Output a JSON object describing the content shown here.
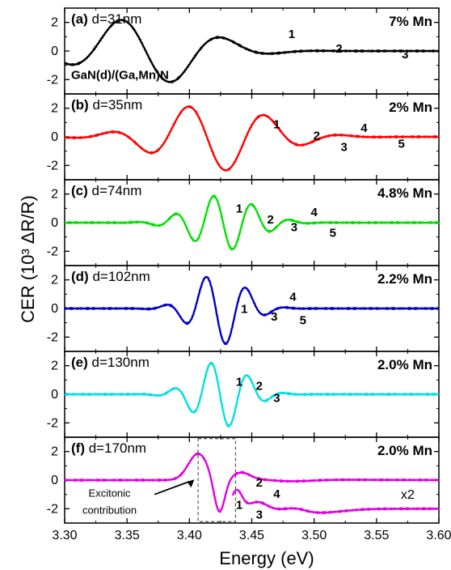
{
  "chart_data": {
    "type": "line",
    "xlabel": "Energy (eV)",
    "ylabel": "CER (10³ ΔR/R)",
    "xlim": [
      3.3,
      3.6
    ],
    "ylim": [
      -3,
      3
    ],
    "xticks": [
      "3.30",
      "3.35",
      "3.40",
      "3.45",
      "3.50",
      "3.55",
      "3.60"
    ],
    "yticks": [
      "2",
      "0",
      "-2"
    ],
    "structure_label": "GaN(d)/(Ga,Mn)N",
    "panels": [
      {
        "label": "(a)",
        "thickness": "d=31nm",
        "mn": "7% Mn",
        "color": "#000000",
        "params": {
          "type": "osc",
          "E0": 3.365,
          "A": 2.4,
          "w": 0.085,
          "sig": 0.045,
          "ph": 0.0
        },
        "peaks": [
          {
            "text": "1",
            "x": 3.482,
            "y": 0.9
          },
          {
            "text": "2",
            "x": 3.52,
            "y": -0.1
          },
          {
            "text": "3",
            "x": 3.573,
            "y": -0.5
          }
        ]
      },
      {
        "label": "(b)",
        "thickness": "d=35nm",
        "mn": "2% Mn",
        "color": "#ff0000",
        "params": {
          "type": "osc",
          "E0": 3.42,
          "A": 2.4,
          "w": 0.063,
          "sig": 0.042,
          "ph": 0.6
        },
        "peaks": [
          {
            "text": "1",
            "x": 3.47,
            "y": 0.6
          },
          {
            "text": "2",
            "x": 3.502,
            "y": -0.2
          },
          {
            "text": "3",
            "x": 3.524,
            "y": -1.0
          },
          {
            "text": "4",
            "x": 3.54,
            "y": 0.35
          },
          {
            "text": "5",
            "x": 3.57,
            "y": -0.75
          }
        ]
      },
      {
        "label": "(c)",
        "thickness": "d=74nm",
        "mn": "4.8% Mn",
        "color": "#00e000",
        "params": {
          "type": "osc",
          "E0": 3.427,
          "A": 1.95,
          "w": 0.031,
          "sig": 0.025,
          "ph": 0.0
        },
        "peaks": [
          {
            "text": "1",
            "x": 3.44,
            "y": 0.7
          },
          {
            "text": "2",
            "x": 3.465,
            "y": -0.05
          },
          {
            "text": "3",
            "x": 3.484,
            "y": -0.6
          },
          {
            "text": "4",
            "x": 3.5,
            "y": 0.45
          },
          {
            "text": "5",
            "x": 3.515,
            "y": -1.0
          }
        ]
      },
      {
        "label": "(d)",
        "thickness": "d=102nm",
        "mn": "2.2% Mn",
        "color": "#0000c8",
        "params": {
          "type": "osc",
          "E0": 3.424,
          "A": 2.55,
          "w": 0.033,
          "sig": 0.02,
          "ph": 0.55
        },
        "peaks": [
          {
            "text": "1",
            "x": 3.444,
            "y": -0.3
          },
          {
            "text": "3",
            "x": 3.468,
            "y": -0.85
          },
          {
            "text": "4",
            "x": 3.483,
            "y": 0.55
          },
          {
            "text": "5",
            "x": 3.491,
            "y": -1.1
          }
        ]
      },
      {
        "label": "(e)",
        "thickness": "d=130nm",
        "mn": "2.0% Mn",
        "color": "#00e0e0",
        "params": {
          "type": "osc",
          "E0": 3.425,
          "A": 2.35,
          "w": 0.03,
          "sig": 0.02,
          "ph": 0.1
        },
        "peaks": [
          {
            "text": "1",
            "x": 3.44,
            "y": 0.6
          },
          {
            "text": "2",
            "x": 3.456,
            "y": 0.3
          },
          {
            "text": "3",
            "x": 3.47,
            "y": -0.55
          }
        ]
      },
      {
        "label": "(f)",
        "thickness": "d=170nm",
        "mn": "2.0% Mn",
        "color": "#e000e0",
        "params": {
          "type": "f"
        },
        "peaks": [
          {
            "text": "2",
            "x": 3.456,
            "y": -0.45
          },
          {
            "text": "4",
            "x": 3.47,
            "y": -1.25
          },
          {
            "text": "1",
            "x": 3.44,
            "y": -2.0
          },
          {
            "text": "3",
            "x": 3.456,
            "y": -2.7
          }
        ],
        "annotation": {
          "line1": "Excitonic",
          "line2": "contribution",
          "box_x": [
            3.407,
            3.437
          ],
          "box_y": [
            -2.9,
            2.9
          ]
        },
        "scale_note": "x2"
      }
    ]
  }
}
